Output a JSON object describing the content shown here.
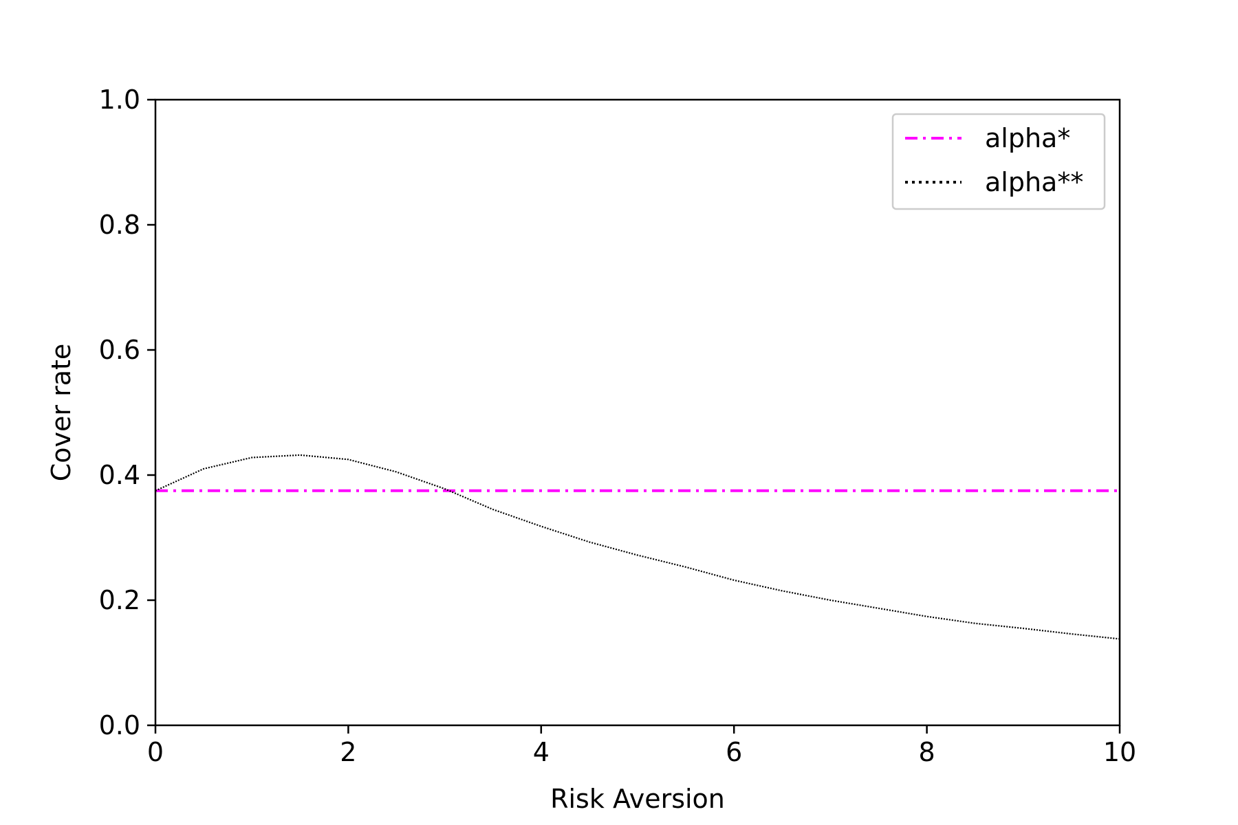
{
  "chart_data": {
    "type": "line",
    "title": "",
    "xlabel": "Risk Aversion",
    "ylabel": "Cover rate",
    "xlim": [
      0,
      10
    ],
    "ylim": [
      0,
      1.0
    ],
    "x_ticks": [
      {
        "value": 0,
        "label": "0"
      },
      {
        "value": 2,
        "label": "2"
      },
      {
        "value": 4,
        "label": "4"
      },
      {
        "value": 6,
        "label": "6"
      },
      {
        "value": 8,
        "label": "8"
      },
      {
        "value": 10,
        "label": "10"
      }
    ],
    "y_ticks": [
      {
        "value": 0.0,
        "label": "0.0"
      },
      {
        "value": 0.2,
        "label": "0.2"
      },
      {
        "value": 0.4,
        "label": "0.4"
      },
      {
        "value": 0.6,
        "label": "0.6"
      },
      {
        "value": 0.8,
        "label": "0.8"
      },
      {
        "value": 1.0,
        "label": "1.0"
      }
    ],
    "grid": false,
    "legend_position": "top-right",
    "series": [
      {
        "name": "alpha*",
        "color": "#ff00ff",
        "style": "dashdot",
        "x": [
          0,
          10
        ],
        "y": [
          0.375,
          0.375
        ]
      },
      {
        "name": "alpha**",
        "color": "#000000",
        "style": "dotted",
        "x": [
          0,
          0.5,
          1,
          1.5,
          2,
          2.5,
          3,
          3.5,
          4,
          4.5,
          5,
          5.5,
          6,
          6.5,
          7,
          7.5,
          8,
          8.5,
          9,
          9.5,
          10
        ],
        "y": [
          0.375,
          0.41,
          0.428,
          0.432,
          0.425,
          0.405,
          0.378,
          0.345,
          0.318,
          0.293,
          0.272,
          0.253,
          0.232,
          0.215,
          0.2,
          0.187,
          0.174,
          0.163,
          0.155,
          0.146,
          0.138
        ]
      }
    ]
  }
}
